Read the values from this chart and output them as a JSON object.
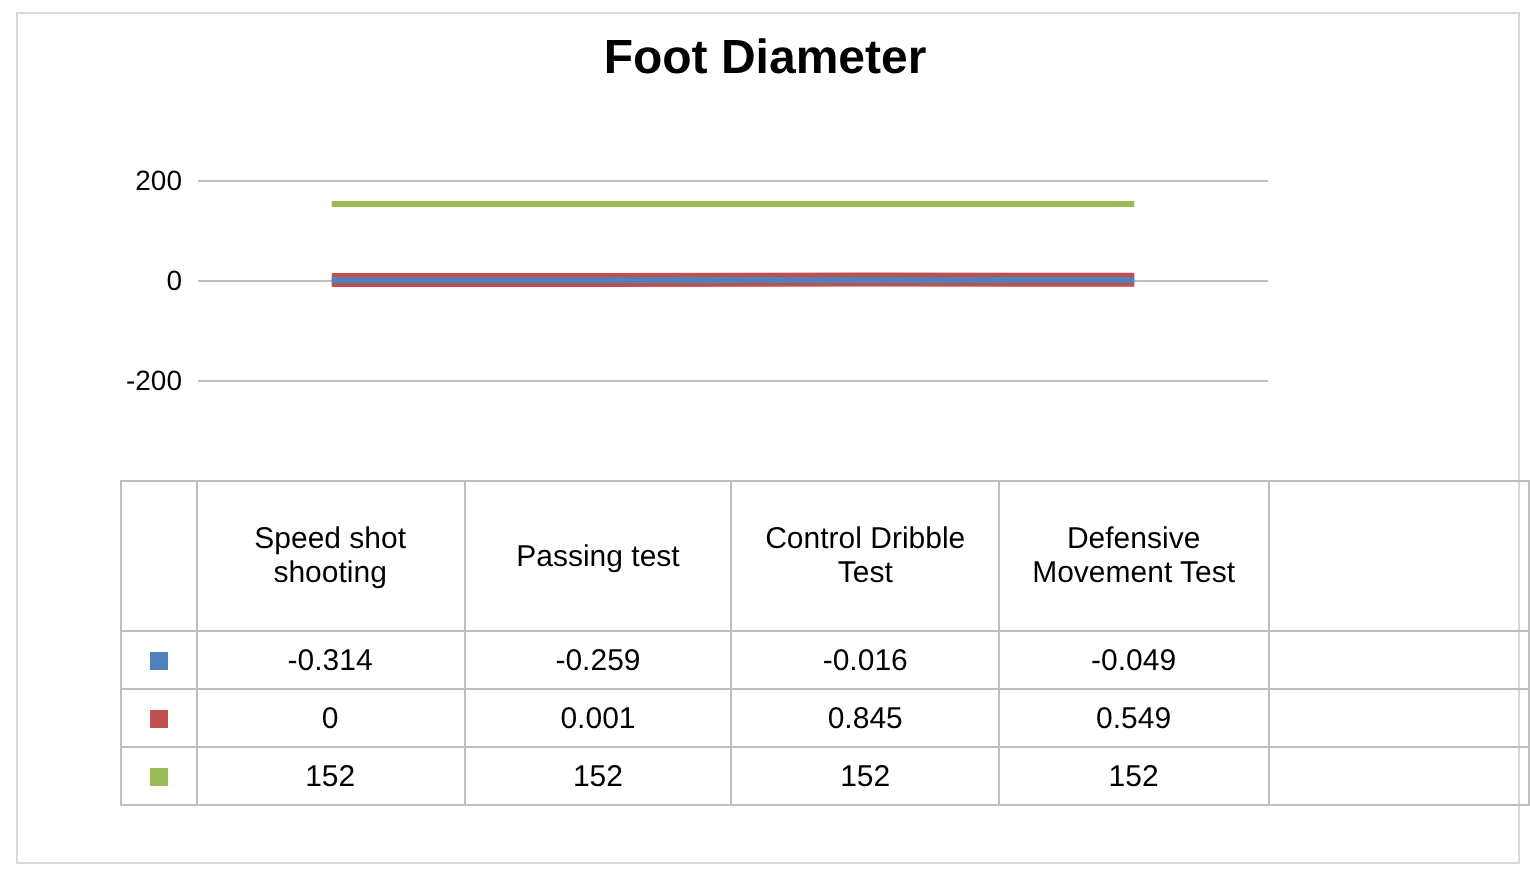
{
  "chart_data": {
    "type": "line",
    "title": "Foot Diameter",
    "categories": [
      "Speed shot shooting",
      "Passing test",
      "Control Dribble Test",
      "Defensive Movement Test"
    ],
    "series": [
      {
        "color": "#4f81bd",
        "values": [
          -0.314,
          -0.259,
          -0.016,
          -0.049
        ]
      },
      {
        "color": "#c0504d",
        "values": [
          0,
          0.001,
          0.845,
          0.549
        ]
      },
      {
        "color": "#9bbb59",
        "values": [
          152,
          152,
          152,
          152
        ]
      }
    ],
    "ylim": [
      -200,
      200
    ],
    "yticks": [
      -200,
      0,
      200
    ],
    "grid": "y",
    "marker": "none",
    "line_style": "solid",
    "data_labels": true,
    "tick_labels": "y"
  }
}
